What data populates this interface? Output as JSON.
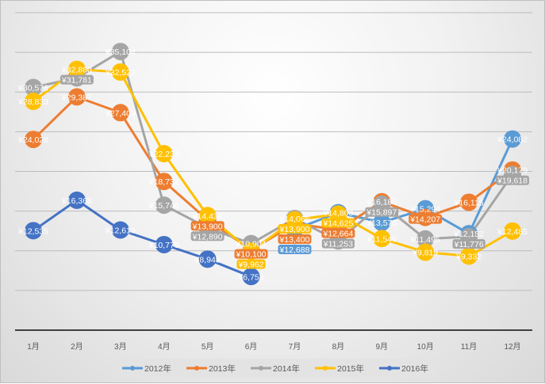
{
  "chart_data": {
    "type": "line",
    "title": "",
    "xlabel": "",
    "ylabel": "",
    "ylim": [
      0,
      40000
    ],
    "y_gridline_step": 5000,
    "grid": true,
    "legend_position": "bottom",
    "currency_prefix": "¥",
    "categories": [
      "1月",
      "2月",
      "3月",
      "4月",
      "5月",
      "6月",
      "7月",
      "8月",
      "9月",
      "10月",
      "11月",
      "12月"
    ],
    "series": [
      {
        "name": "2012年",
        "color": "#5B9BD5",
        "values": [
          null,
          null,
          null,
          null,
          null,
          null,
          12688,
          14800,
          13576,
          15294,
          12152,
          24082
        ]
      },
      {
        "name": "2013年",
        "color": "#ED7D31",
        "values": [
          24028,
          29387,
          27403,
          18731,
          13900,
          10100,
          13400,
          12664,
          16185,
          14207,
          16115,
          20179
        ]
      },
      {
        "name": "2014年",
        "color": "#A5A5A5",
        "values": [
          30576,
          31781,
          35104,
          15746,
          12890,
          10904,
          14066,
          11253,
          15897,
          11495,
          11776,
          19618
        ]
      },
      {
        "name": "2015年",
        "color": "#FFC000",
        "values": [
          28833,
          32860,
          32522,
          22233,
          14434,
          9962,
          13900,
          14625,
          11546,
          9819,
          9332,
          12485
        ]
      },
      {
        "name": "2016年",
        "color": "#4472C4",
        "values": [
          12535,
          16368,
          12619,
          10779,
          8945,
          6758,
          null,
          null,
          null,
          null,
          null,
          null
        ]
      }
    ]
  }
}
